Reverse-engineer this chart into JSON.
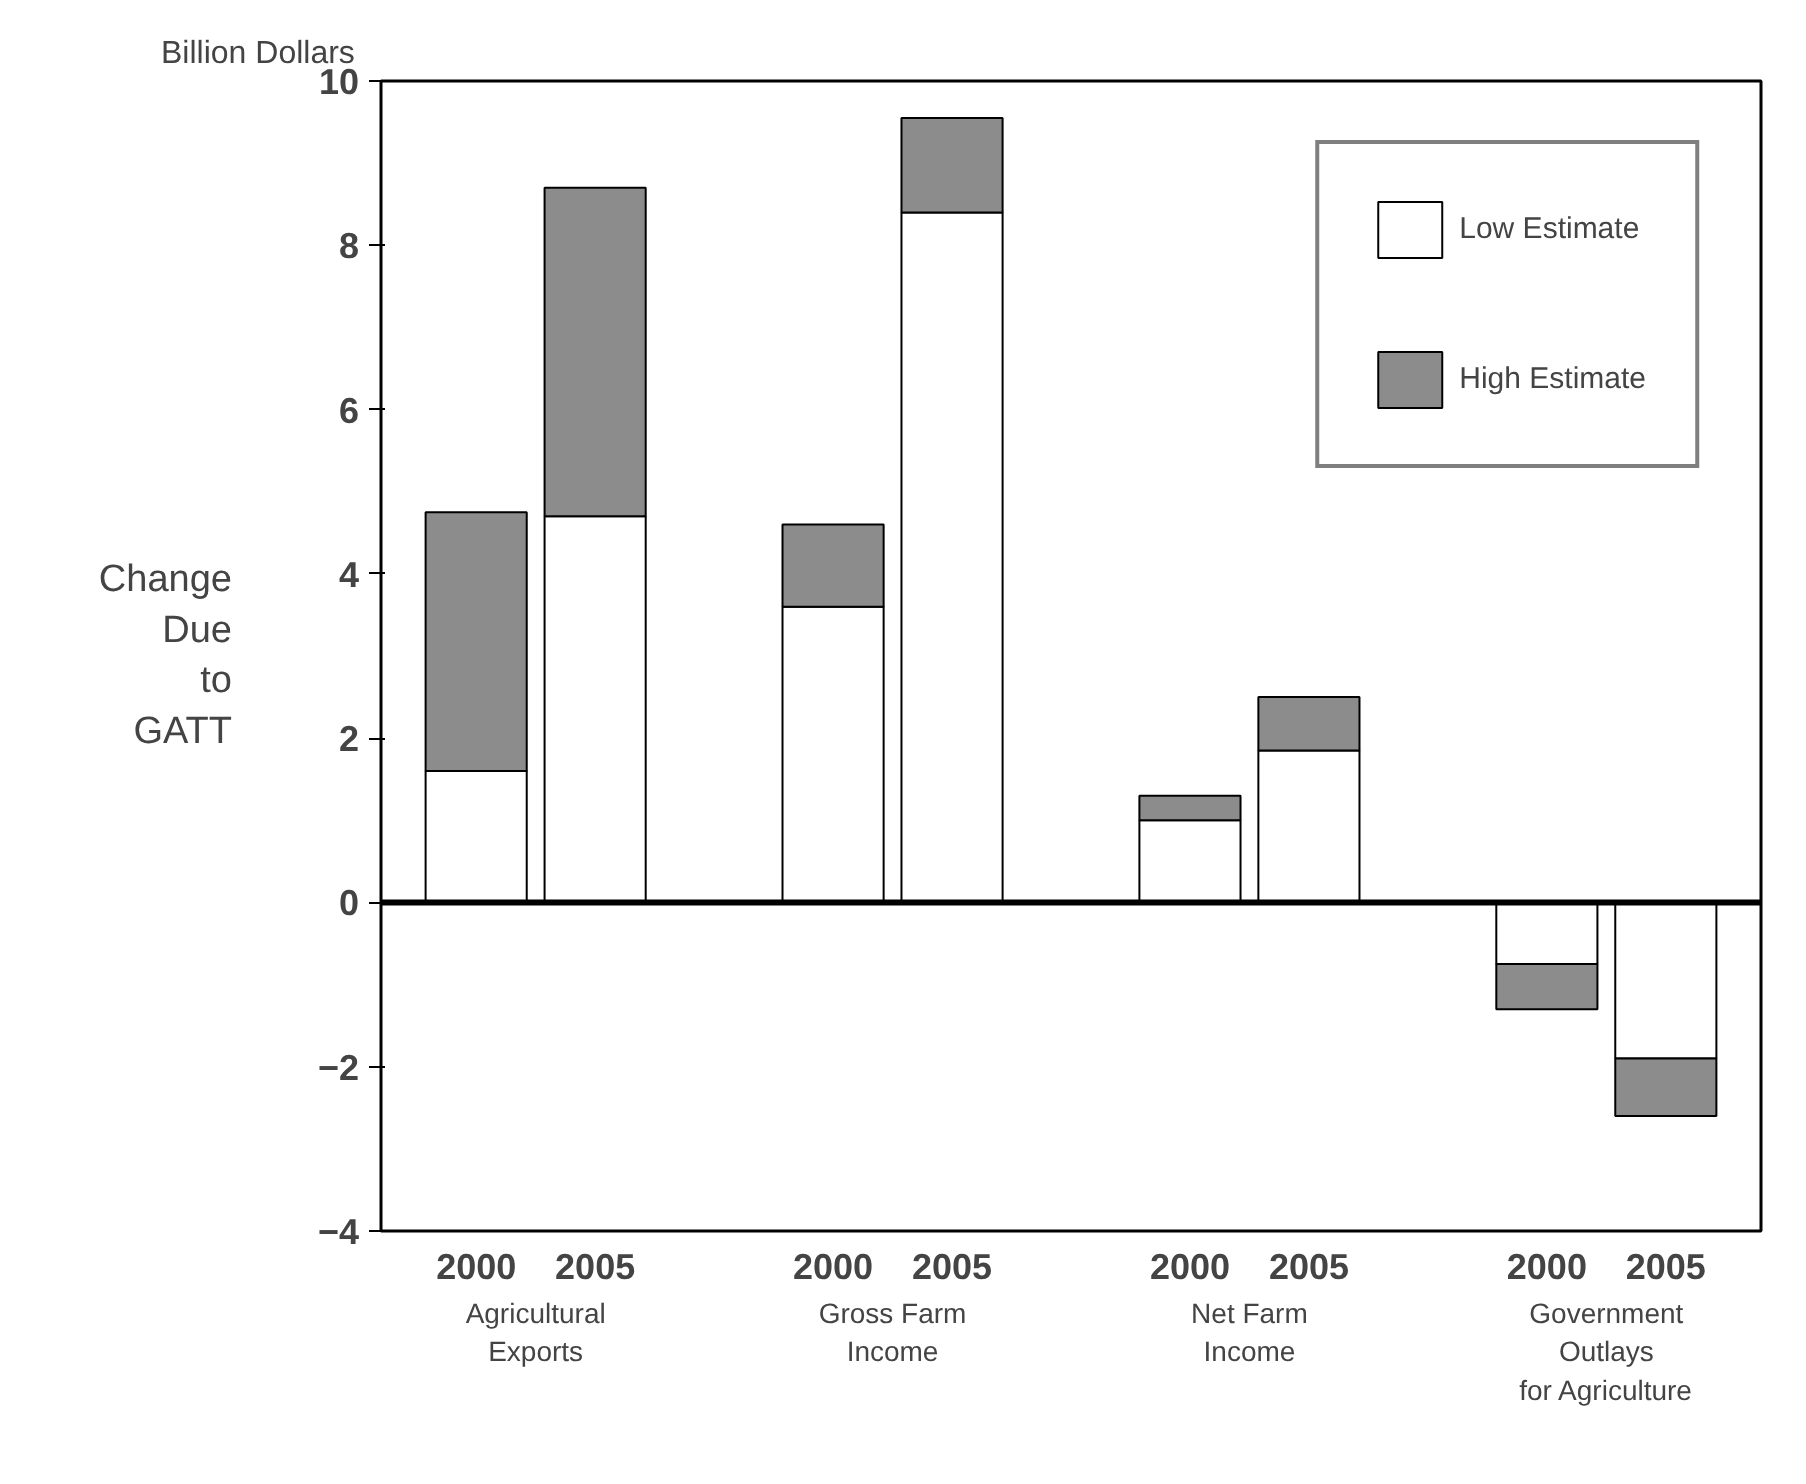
{
  "chart_data": {
    "type": "bar",
    "title": "Billion Dollars",
    "ylabel": "Change Due to GATT",
    "categories": [
      "2000",
      "2005",
      "2000",
      "2005",
      "2000",
      "2005",
      "2000",
      "2005"
    ],
    "stacked": true,
    "series": [
      {
        "name": "Low Estimate",
        "color": "#ffffff",
        "values": [
          1.6,
          4.7,
          3.6,
          8.4,
          1.0,
          1.85,
          -0.75,
          -1.9
        ]
      },
      {
        "name": "High Estimate",
        "color": "#8c8c8c",
        "values": [
          3.15,
          4.0,
          1.0,
          1.15,
          0.3,
          0.65,
          -0.55,
          -0.7
        ]
      }
    ],
    "ylim": [
      -4,
      10
    ],
    "yticks": [
      -4,
      -2,
      0,
      2,
      4,
      6,
      8,
      10
    ],
    "ref_lines": [
      {
        "axis": "y",
        "value": 0
      }
    ],
    "annotations": [
      "Agricultural\nExports",
      "Gross Farm\nIncome",
      "Net Farm\nIncome",
      "Government\nOutlays\nfor Agriculture"
    ],
    "legend": "top right",
    "grid": false
  }
}
